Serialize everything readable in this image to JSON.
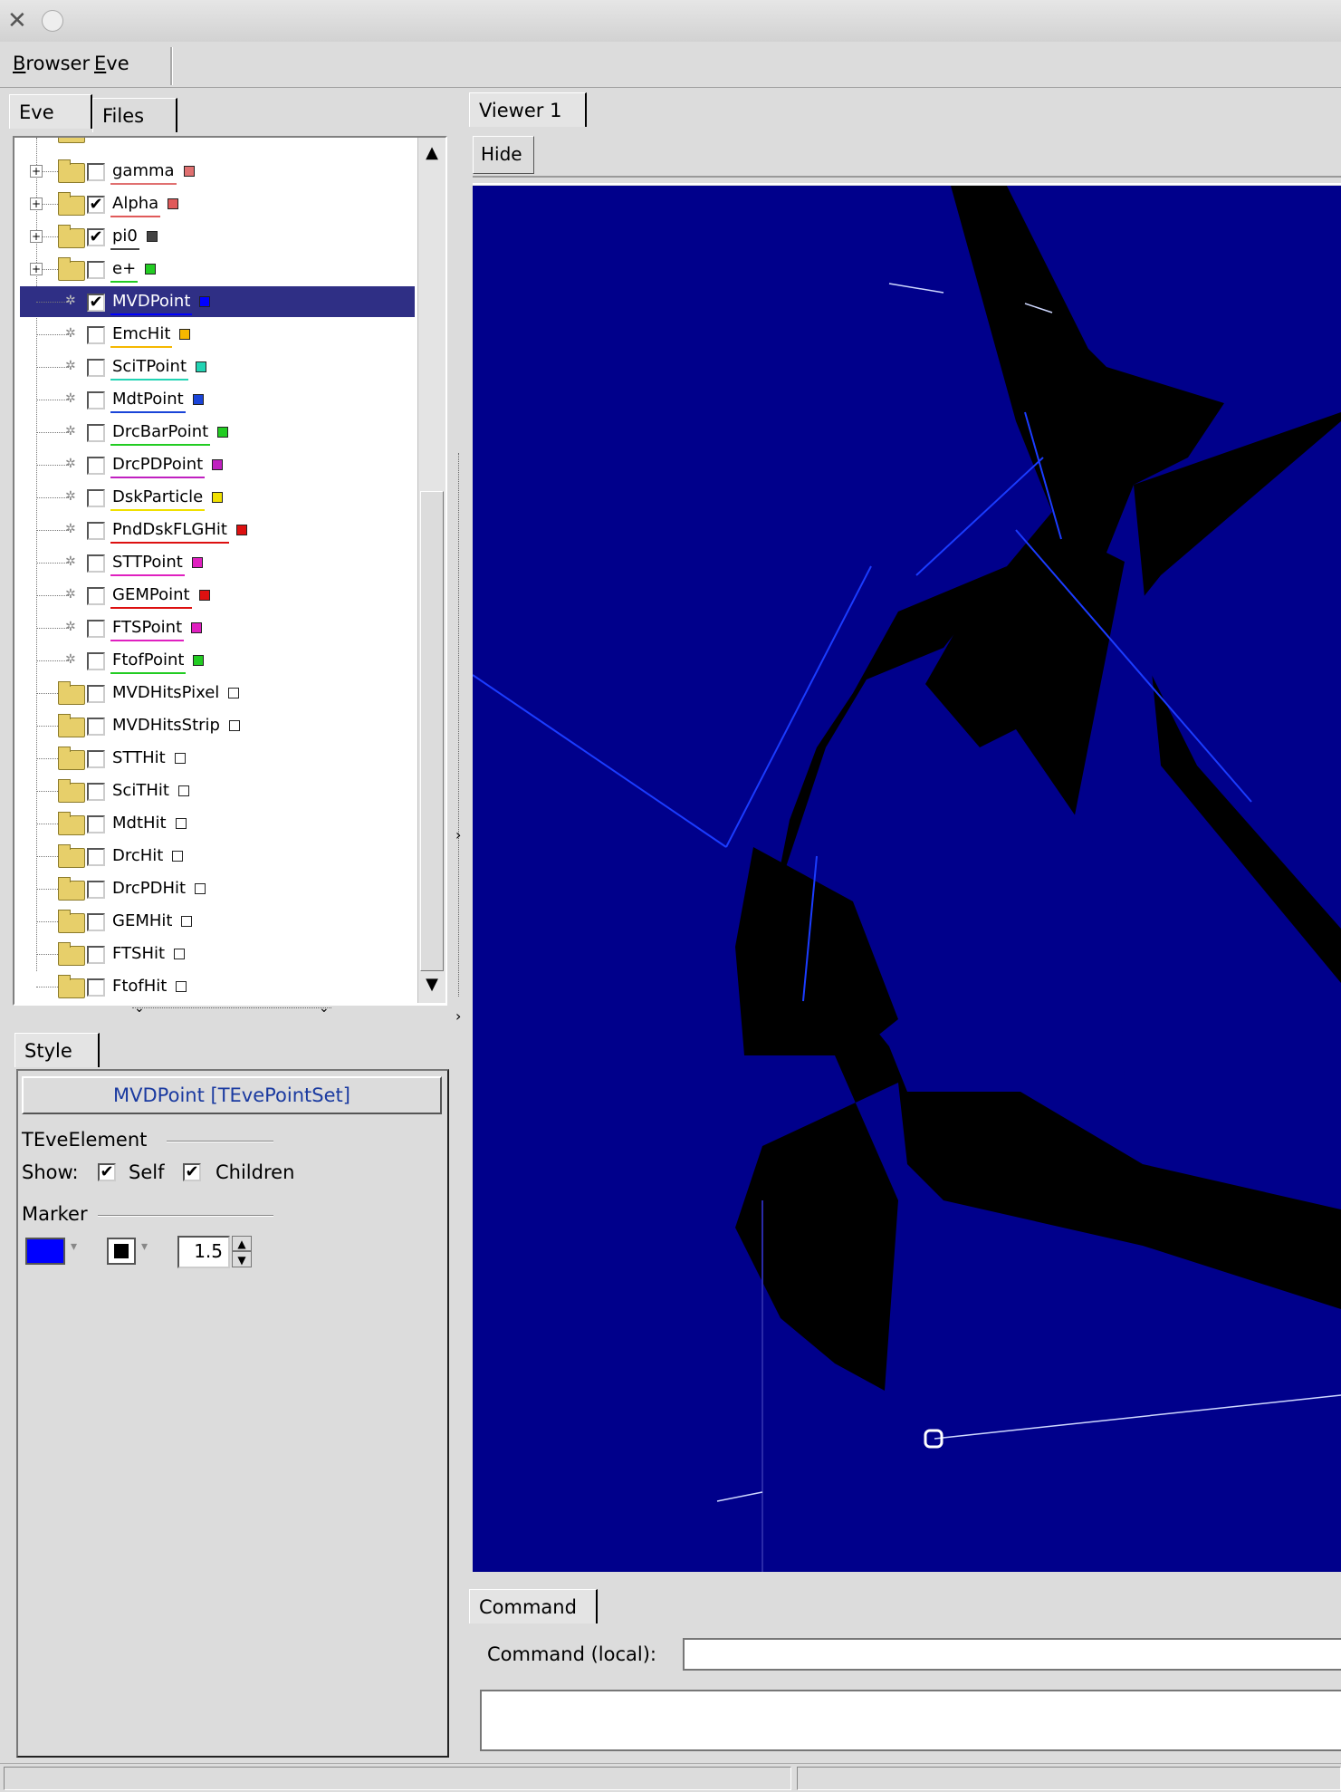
{
  "menu": {
    "browser": "Browser",
    "browser_u": "B",
    "browser_rest": "rowser",
    "eve": "Eve",
    "eve_u": "E",
    "eve_rest": "ve"
  },
  "left_tabs": [
    "Eve",
    "Files"
  ],
  "tree_items": [
    {
      "label": "gamma",
      "checked": false,
      "type": "folder",
      "swatch": "#e07070",
      "uline": "#e07070"
    },
    {
      "label": "Alpha",
      "checked": true,
      "type": "folder",
      "swatch": "#e05a5a",
      "uline": "#e05a5a"
    },
    {
      "label": "pi0",
      "checked": true,
      "type": "folder",
      "swatch": "#444444",
      "uline": "#444444"
    },
    {
      "label": "e+",
      "checked": false,
      "type": "folder",
      "swatch": "#22cc22",
      "uline": "#22cc22"
    },
    {
      "label": "MVDPoint",
      "checked": true,
      "type": "leaf",
      "swatch": "#0000ff",
      "uline": "#0000ff",
      "selected": true
    },
    {
      "label": "EmcHit",
      "checked": false,
      "type": "leaf",
      "swatch": "#f5b800",
      "uline": "#f5b800"
    },
    {
      "label": "SciTPoint",
      "checked": false,
      "type": "leaf",
      "swatch": "#22d4b4",
      "uline": "#22d4b4"
    },
    {
      "label": "MdtPoint",
      "checked": false,
      "type": "leaf",
      "swatch": "#1a44d8",
      "uline": "#1a44d8"
    },
    {
      "label": "DrcBarPoint",
      "checked": false,
      "type": "leaf",
      "swatch": "#22cc22",
      "uline": "#22cc22"
    },
    {
      "label": "DrcPDPoint",
      "checked": false,
      "type": "leaf",
      "swatch": "#c020c0",
      "uline": "#c020c0"
    },
    {
      "label": "DskParticle",
      "checked": false,
      "type": "leaf",
      "swatch": "#f0e000",
      "uline": "#f0e000"
    },
    {
      "label": "PndDskFLGHit",
      "checked": false,
      "type": "leaf",
      "swatch": "#dd1010",
      "uline": "#dd1010"
    },
    {
      "label": "STTPoint",
      "checked": false,
      "type": "leaf",
      "swatch": "#e020c0",
      "uline": "#e020c0"
    },
    {
      "label": "GEMPoint",
      "checked": false,
      "type": "leaf",
      "swatch": "#dd1010",
      "uline": "#dd1010"
    },
    {
      "label": "FTSPoint",
      "checked": false,
      "type": "leaf",
      "swatch": "#e020c0",
      "uline": "#e020c0"
    },
    {
      "label": "FtofPoint",
      "checked": false,
      "type": "leaf",
      "swatch": "#22cc22",
      "uline": "#22cc22"
    },
    {
      "label": "MVDHitsPixel",
      "checked": false,
      "type": "folder-plain",
      "swatch": "#ffffff"
    },
    {
      "label": "MVDHitsStrip",
      "checked": false,
      "type": "folder-plain",
      "swatch": "#ffffff"
    },
    {
      "label": "STTHit",
      "checked": false,
      "type": "folder-plain",
      "swatch": "#ffffff"
    },
    {
      "label": "SciTHit",
      "checked": false,
      "type": "folder-plain",
      "swatch": "#ffffff"
    },
    {
      "label": "MdtHit",
      "checked": false,
      "type": "folder-plain",
      "swatch": "#ffffff"
    },
    {
      "label": "DrcHit",
      "checked": false,
      "type": "folder-plain",
      "swatch": "#ffffff"
    },
    {
      "label": "DrcPDHit",
      "checked": false,
      "type": "folder-plain",
      "swatch": "#ffffff"
    },
    {
      "label": "GEMHit",
      "checked": false,
      "type": "folder-plain",
      "swatch": "#ffffff"
    },
    {
      "label": "FTSHit",
      "checked": false,
      "type": "folder-plain",
      "swatch": "#ffffff"
    },
    {
      "label": "FtofHit",
      "checked": false,
      "type": "folder-plain",
      "swatch": "#ffffff"
    }
  ],
  "style_tab": "Style",
  "editor": {
    "title": "MVDPoint [TEvePointSet]",
    "group_element": "TEveElement",
    "show_label": "Show:",
    "self_label": "Self",
    "children_label": "Children",
    "self_checked": "✔",
    "children_checked": "✔",
    "group_marker": "Marker",
    "marker_color": "#0000ff",
    "marker_style_color": "#000000",
    "marker_size": "1.5"
  },
  "viewer": {
    "tab": "Viewer 1",
    "hide_button": "Hide",
    "background": "#00008b"
  },
  "command": {
    "tab": "Command",
    "label": "Command (local):",
    "value": ""
  }
}
